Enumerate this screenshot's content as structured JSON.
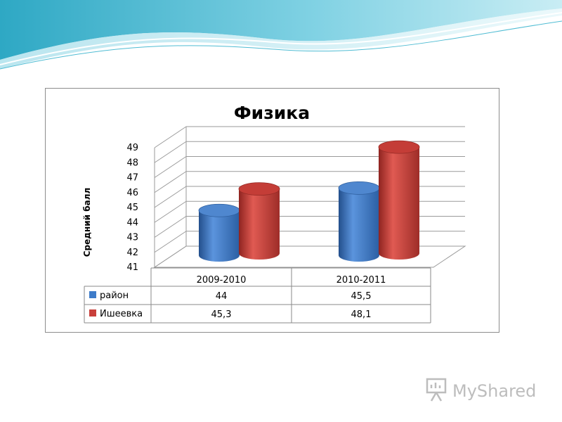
{
  "chart_data": {
    "type": "bar",
    "title": "Физика",
    "ylabel": "Средний балл",
    "ylim": [
      41,
      49
    ],
    "yticks": [
      "41",
      "42",
      "43",
      "44",
      "45",
      "46",
      "47",
      "48",
      "49"
    ],
    "categories": [
      "2009-2010",
      "2010-2011"
    ],
    "series": [
      {
        "name": "район",
        "values": [
          44,
          45.5
        ],
        "labels": [
          "44",
          "45,5"
        ],
        "color": "#3e7cc9"
      },
      {
        "name": "Ишеевка",
        "values": [
          45.3,
          48.1
        ],
        "labels": [
          "45,3",
          "48,1"
        ],
        "color": "#c9403b"
      }
    ],
    "legend": "table-below",
    "grid": true
  },
  "watermark": {
    "text": "MyShared"
  },
  "colors": {
    "banner_light": "#d6f0f5",
    "banner_dark": "#3fb4cc"
  }
}
